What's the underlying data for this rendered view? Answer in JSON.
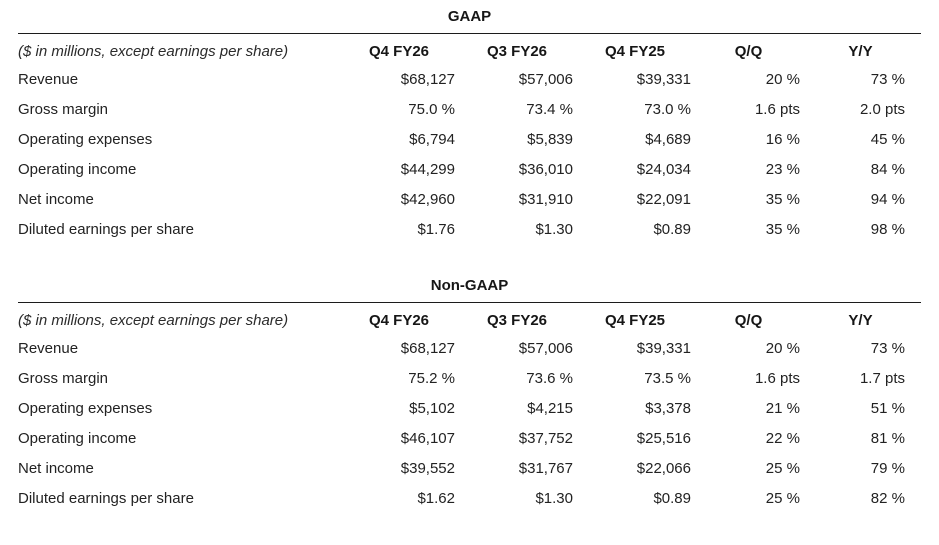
{
  "page": {
    "background": "#ffffff",
    "text_color": "#222222",
    "rule_color": "#1c1c1c"
  },
  "tables": [
    {
      "title": "GAAP",
      "unit_note": "($ in millions, except earnings per share)",
      "columns": [
        "Q4 FY26",
        "Q3 FY26",
        "Q4 FY25",
        "Q/Q",
        "Y/Y"
      ],
      "rows": [
        {
          "label": "Revenue",
          "values": [
            "$68,127",
            "$57,006",
            "$39,331",
            "20 %",
            "73 %"
          ]
        },
        {
          "label": "Gross margin",
          "values": [
            "75.0 %",
            "73.4 %",
            "73.0 %",
            "1.6 pts",
            "2.0 pts"
          ]
        },
        {
          "label": "Operating expenses",
          "values": [
            "$6,794",
            "$5,839",
            "$4,689",
            "16 %",
            "45 %"
          ]
        },
        {
          "label": "Operating income",
          "values": [
            "$44,299",
            "$36,010",
            "$24,034",
            "23 %",
            "84 %"
          ]
        },
        {
          "label": "Net income",
          "values": [
            "$42,960",
            "$31,910",
            "$22,091",
            "35 %",
            "94 %"
          ]
        },
        {
          "label": "Diluted earnings per share",
          "values": [
            "$1.76",
            "$1.30",
            "$0.89",
            "35 %",
            "98 %"
          ]
        }
      ]
    },
    {
      "title": "Non-GAAP",
      "unit_note": "($ in millions, except earnings per share)",
      "columns": [
        "Q4 FY26",
        "Q3 FY26",
        "Q4 FY25",
        "Q/Q",
        "Y/Y"
      ],
      "rows": [
        {
          "label": "Revenue",
          "values": [
            "$68,127",
            "$57,006",
            "$39,331",
            "20 %",
            "73 %"
          ]
        },
        {
          "label": "Gross margin",
          "values": [
            "75.2 %",
            "73.6 %",
            "73.5 %",
            "1.6 pts",
            "1.7 pts"
          ]
        },
        {
          "label": "Operating expenses",
          "values": [
            "$5,102",
            "$4,215",
            "$3,378",
            "21 %",
            "51 %"
          ]
        },
        {
          "label": "Operating income",
          "values": [
            "$46,107",
            "$37,752",
            "$25,516",
            "22 %",
            "81 %"
          ]
        },
        {
          "label": "Net income",
          "values": [
            "$39,552",
            "$31,767",
            "$22,066",
            "25 %",
            "79 %"
          ]
        },
        {
          "label": "Diluted earnings per share",
          "values": [
            "$1.62",
            "$1.30",
            "$0.89",
            "25 %",
            "82 %"
          ]
        }
      ]
    }
  ]
}
